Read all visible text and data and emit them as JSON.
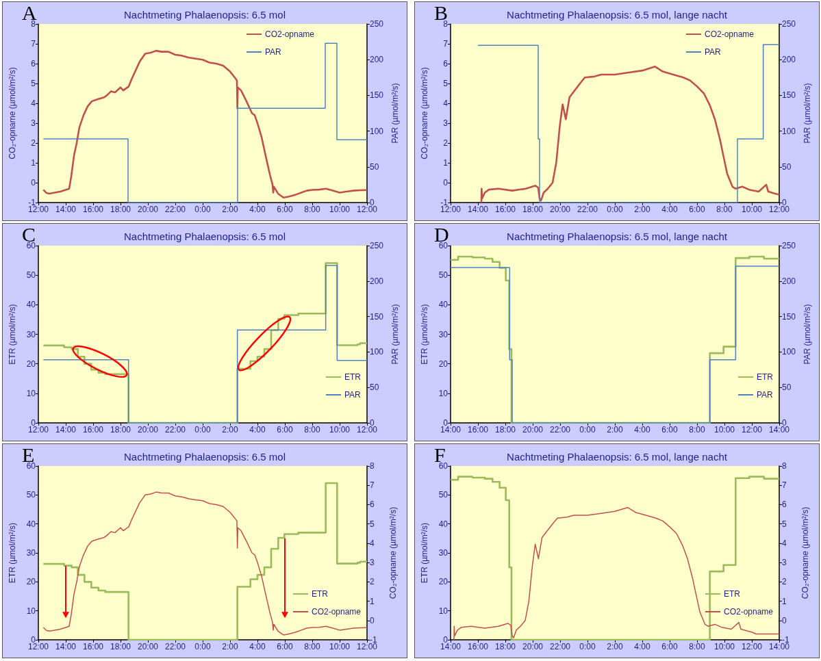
{
  "chart_data": [
    {
      "type": "line",
      "title": "Nachtmeting Phalaenopsis: 6.5 mol",
      "annotations": [
        "A"
      ],
      "ylabel": "CO₂-opname (µmol/m²/s)",
      "y2label": "PAR (µmol/m²/s)",
      "legend": "top right",
      "xlim": [
        "2000-01-01T12:00",
        "2000-01-02T12:00"
      ],
      "xticks": [
        {
          "value": "2000-01-01T12:00",
          "label": "12:00"
        },
        {
          "value": "2000-01-01T14:00",
          "label": "14:00"
        },
        {
          "value": "2000-01-01T16:00",
          "label": "16:00"
        },
        {
          "value": "2000-01-01T18:00",
          "label": "18:00"
        },
        {
          "value": "2000-01-01T20:00",
          "label": "20:00"
        },
        {
          "value": "2000-01-01T22:00",
          "label": "22:00"
        },
        {
          "value": "2000-01-02T00:00",
          "label": "0:00"
        },
        {
          "value": "2000-01-02T02:00",
          "label": "2:00"
        },
        {
          "value": "2000-01-02T04:00",
          "label": "4:00"
        },
        {
          "value": "2000-01-02T06:00",
          "label": "6:00"
        },
        {
          "value": "2000-01-02T08:00",
          "label": "8:00"
        },
        {
          "value": "2000-01-02T10:00",
          "label": "10:00"
        },
        {
          "value": "2000-01-02T12:00",
          "label": "12:00"
        }
      ],
      "ylim": [
        -1,
        8
      ],
      "yticks": [
        -1,
        0,
        1,
        2,
        3,
        4,
        5,
        6,
        7,
        8
      ],
      "y2lim": [
        0,
        250
      ],
      "y2ticks": [
        0,
        50,
        100,
        150,
        200,
        250
      ],
      "series": [
        {
          "name": "CO2-opname",
          "type": "line",
          "color": "#c0504d",
          "x": [
            "2000-01-01T12:22",
            "2000-01-01T12:36",
            "2000-01-01T12:48",
            "2000-01-01T13:12",
            "2000-01-01T13:36",
            "2000-01-01T14:00",
            "2000-01-01T14:15",
            "2000-01-01T14:24",
            "2000-01-01T14:36",
            "2000-01-01T14:48",
            "2000-01-01T15:00",
            "2000-01-01T15:18",
            "2000-01-01T15:36",
            "2000-01-01T15:54",
            "2000-01-01T16:18",
            "2000-01-01T16:48",
            "2000-01-01T17:00",
            "2000-01-01T17:18",
            "2000-01-01T17:36",
            "2000-01-01T18:00",
            "2000-01-01T18:12",
            "2000-01-01T18:36",
            "2000-01-01T18:48",
            "2000-01-01T19:06",
            "2000-01-01T19:24",
            "2000-01-01T19:48",
            "2000-01-01T20:12",
            "2000-01-01T20:36",
            "2000-01-01T21:00",
            "2000-01-01T21:30",
            "2000-01-01T22:00",
            "2000-01-01T22:30",
            "2000-01-01T23:00",
            "2000-01-01T23:30",
            "2000-01-02T00:00",
            "2000-01-02T00:30",
            "2000-01-02T01:00",
            "2000-01-02T01:30",
            "2000-01-02T02:00",
            "2000-01-02T02:24",
            "2000-01-02T02:30",
            "2000-01-02T02:32",
            "2000-01-02T02:34",
            "2000-01-02T02:48",
            "2000-01-02T03:12",
            "2000-01-02T03:36",
            "2000-01-02T03:48",
            "2000-01-02T04:00",
            "2000-01-02T04:18",
            "2000-01-02T04:36",
            "2000-01-02T04:54",
            "2000-01-02T05:06",
            "2000-01-02T05:09",
            "2000-01-02T05:12",
            "2000-01-02T05:30",
            "2000-01-02T05:54",
            "2000-01-02T06:18",
            "2000-01-02T06:48",
            "2000-01-02T07:12",
            "2000-01-02T07:36",
            "2000-01-02T08:00",
            "2000-01-02T08:30",
            "2000-01-02T09:00",
            "2000-01-02T09:30",
            "2000-01-02T10:00",
            "2000-01-02T10:30",
            "2000-01-02T11:00",
            "2000-01-02T11:30",
            "2000-01-02T12:00"
          ],
          "values": [
            -0.36,
            -0.52,
            -0.55,
            -0.5,
            -0.45,
            -0.36,
            -0.3,
            0.3,
            1.35,
            2.0,
            2.8,
            3.4,
            3.85,
            4.1,
            4.2,
            4.3,
            4.4,
            4.6,
            4.55,
            4.8,
            4.65,
            4.85,
            5.2,
            5.65,
            6.1,
            6.5,
            6.55,
            6.65,
            6.6,
            6.6,
            6.45,
            6.4,
            6.3,
            6.25,
            6.2,
            6.05,
            6.0,
            5.9,
            5.6,
            5.25,
            5.15,
            3.75,
            4.8,
            4.65,
            4.1,
            3.5,
            3.4,
            3.0,
            2.3,
            1.35,
            0.43,
            -0.1,
            -0.5,
            -0.2,
            -0.55,
            -0.75,
            -0.7,
            -0.6,
            -0.5,
            -0.4,
            -0.36,
            -0.35,
            -0.3,
            -0.4,
            -0.5,
            -0.45,
            -0.4,
            -0.38,
            -0.37
          ]
        },
        {
          "name": "PAR",
          "type": "step",
          "axis": "y2",
          "color": "#4f81bd",
          "x": [
            "2000-01-01T12:22",
            "2000-01-01T18:33",
            "2000-01-02T02:33",
            "2000-01-02T08:57",
            "2000-01-02T09:48",
            "2000-01-02T12:00"
          ],
          "values": [
            89,
            0,
            132,
            223,
            88,
            88
          ]
        }
      ]
    },
    {
      "type": "line",
      "title": "Nachtmeting Phalaenopsis: 6.5 mol, lange nacht",
      "annotations": [
        "B"
      ],
      "ylabel": "CO₂-opname (µmol/m²/s)",
      "y2label": "PAR (µmol/m²/s)",
      "legend": "top right",
      "xlim": [
        "2000-01-01T12:00",
        "2000-01-02T12:00"
      ],
      "xticks": [
        {
          "value": "2000-01-01T12:00",
          "label": "12:00"
        },
        {
          "value": "2000-01-01T14:00",
          "label": "14:00"
        },
        {
          "value": "2000-01-01T16:00",
          "label": "16:00"
        },
        {
          "value": "2000-01-01T18:00",
          "label": "18:00"
        },
        {
          "value": "2000-01-01T20:00",
          "label": "20:00"
        },
        {
          "value": "2000-01-01T22:00",
          "label": "22:00"
        },
        {
          "value": "2000-01-02T00:00",
          "label": "0:00"
        },
        {
          "value": "2000-01-02T02:00",
          "label": "2:00"
        },
        {
          "value": "2000-01-02T04:00",
          "label": "4:00"
        },
        {
          "value": "2000-01-02T06:00",
          "label": "6:00"
        },
        {
          "value": "2000-01-02T08:00",
          "label": "8:00"
        },
        {
          "value": "2000-01-02T10:00",
          "label": "10:00"
        },
        {
          "value": "2000-01-02T12:00",
          "label": "12:00"
        }
      ],
      "ylim": [
        -1,
        8
      ],
      "yticks": [
        -1,
        0,
        1,
        2,
        3,
        4,
        5,
        6,
        7,
        8
      ],
      "y2lim": [
        0,
        250
      ],
      "y2ticks": [
        0,
        50,
        100,
        150,
        200,
        250
      ],
      "series": [
        {
          "name": "CO2-opname",
          "type": "line",
          "color": "#c0504d",
          "x": [
            "2000-01-01T14:15",
            "2000-01-01T14:16",
            "2000-01-01T14:18",
            "2000-01-01T14:30",
            "2000-01-01T14:48",
            "2000-01-01T15:30",
            "2000-01-01T16:30",
            "2000-01-01T17:30",
            "2000-01-01T18:12",
            "2000-01-01T18:24",
            "2000-01-01T18:30",
            "2000-01-01T18:36",
            "2000-01-01T18:48",
            "2000-01-01T19:06",
            "2000-01-01T19:27",
            "2000-01-01T19:43",
            "2000-01-01T19:58",
            "2000-01-01T20:11",
            "2000-01-01T20:25",
            "2000-01-01T20:41",
            "2000-01-01T20:54",
            "2000-01-01T21:27",
            "2000-01-01T21:48",
            "2000-01-01T22:30",
            "2000-01-01T23:00",
            "2000-01-02T00:00",
            "2000-01-02T01:00",
            "2000-01-02T02:00",
            "2000-01-02T02:56",
            "2000-01-02T03:30",
            "2000-01-02T04:00",
            "2000-01-02T05:00",
            "2000-01-02T05:30",
            "2000-01-02T06:00",
            "2000-01-02T06:30",
            "2000-01-02T06:56",
            "2000-01-02T07:18",
            "2000-01-02T07:40",
            "2000-01-02T08:12",
            "2000-01-02T08:35",
            "2000-01-02T08:48",
            "2000-01-02T09:18",
            "2000-01-02T09:48",
            "2000-01-02T10:30",
            "2000-01-02T11:03",
            "2000-01-02T11:12",
            "2000-01-02T11:42",
            "2000-01-02T12:00"
          ],
          "values": [
            -1.0,
            -0.3,
            -0.8,
            -0.5,
            -0.35,
            -0.3,
            -0.4,
            -0.3,
            -0.15,
            -0.25,
            -0.8,
            -0.9,
            -0.5,
            -0.3,
            0.0,
            1.0,
            2.8,
            3.95,
            3.2,
            4.3,
            4.5,
            5.0,
            5.3,
            5.35,
            5.45,
            5.45,
            5.55,
            5.65,
            5.85,
            5.6,
            5.5,
            5.3,
            5.15,
            4.85,
            4.5,
            3.9,
            3.2,
            2.2,
            0.45,
            -0.2,
            -0.3,
            -0.2,
            -0.35,
            -0.45,
            -0.1,
            -0.45,
            -0.55,
            -0.6
          ]
        },
        {
          "name": "PAR",
          "type": "step",
          "axis": "y2",
          "color": "#4f81bd",
          "x": [
            "2000-01-01T14:00",
            "2000-01-01T18:24",
            "2000-01-01T18:30",
            "2000-01-02T08:57",
            "2000-01-02T10:50",
            "2000-01-02T12:00"
          ],
          "values": [
            220,
            89,
            0,
            89,
            221,
            221
          ]
        }
      ]
    },
    {
      "type": "line",
      "title": "Nachtmeting Phalaenopsis: 6.5 mol",
      "annotations": [
        "C"
      ],
      "ylabel": "ETR (µmol/m²/s)",
      "y2label": "PAR (µmol/m²/s)",
      "legend": "bottom right",
      "xlim": [
        "2000-01-01T12:00",
        "2000-01-02T12:00"
      ],
      "xticks": [
        {
          "value": "2000-01-01T12:00",
          "label": "12:00"
        },
        {
          "value": "2000-01-01T14:00",
          "label": "14:00"
        },
        {
          "value": "2000-01-01T16:00",
          "label": "16:00"
        },
        {
          "value": "2000-01-01T18:00",
          "label": "18:00"
        },
        {
          "value": "2000-01-01T20:00",
          "label": "20:00"
        },
        {
          "value": "2000-01-01T22:00",
          "label": "22:00"
        },
        {
          "value": "2000-01-02T00:00",
          "label": "0:00"
        },
        {
          "value": "2000-01-02T02:00",
          "label": "2:00"
        },
        {
          "value": "2000-01-02T04:00",
          "label": "4:00"
        },
        {
          "value": "2000-01-02T06:00",
          "label": "6:00"
        },
        {
          "value": "2000-01-02T08:00",
          "label": "8:00"
        },
        {
          "value": "2000-01-02T10:00",
          "label": "10:00"
        },
        {
          "value": "2000-01-02T12:00",
          "label": "12:00"
        }
      ],
      "ylim": [
        0,
        60
      ],
      "yticks": [
        0,
        10,
        20,
        30,
        40,
        50,
        60
      ],
      "y2lim": [
        0,
        250
      ],
      "y2ticks": [
        0,
        50,
        100,
        150,
        200,
        250
      ],
      "series": [
        {
          "name": "ETR",
          "type": "step",
          "color": "#9bbb59",
          "x": [
            "2000-01-01T12:22",
            "2000-01-01T13:53",
            "2000-01-01T14:26",
            "2000-01-01T14:53",
            "2000-01-01T15:22",
            "2000-01-01T15:52",
            "2000-01-01T16:23",
            "2000-01-01T16:53",
            "2000-01-01T18:35",
            "2000-01-02T02:32",
            "2000-01-02T03:29",
            "2000-01-02T04:00",
            "2000-01-02T04:30",
            "2000-01-02T05:00",
            "2000-01-02T05:31",
            "2000-01-02T05:58",
            "2000-01-02T06:59",
            "2000-01-02T08:59",
            "2000-01-02T09:49",
            "2000-01-02T11:18",
            "2000-01-02T11:30",
            "2000-01-02T12:00"
          ],
          "values": [
            26.2,
            25.6,
            25.0,
            22.4,
            20.0,
            18.0,
            17.0,
            16.5,
            0,
            18.3,
            20.9,
            22.4,
            25.0,
            31.4,
            35.2,
            36.5,
            37.0,
            54.1,
            26.3,
            26.6,
            27.0,
            27.0
          ]
        },
        {
          "name": "PAR",
          "type": "step",
          "axis": "y2",
          "color": "#4f81bd",
          "x": [
            "2000-01-01T12:22",
            "2000-01-01T18:35",
            "2000-01-02T02:32",
            "2000-01-02T08:59",
            "2000-01-02T09:49",
            "2000-01-02T12:00"
          ],
          "values": [
            89,
            0,
            131,
            222,
            88,
            88
          ]
        }
      ]
    },
    {
      "type": "line",
      "title": "Nachtmeting Phalaenopsis: 6.5 mol, lange nacht",
      "annotations": [
        "D"
      ],
      "ylabel": "ETR (µmol/m²/s)",
      "y2label": "PAR (µmol/m²/s)",
      "legend": "bottom right",
      "xlim": [
        "2000-01-01T14:00",
        "2000-01-02T14:00"
      ],
      "xticks": [
        {
          "value": "2000-01-01T14:00",
          "label": "14:00"
        },
        {
          "value": "2000-01-01T16:00",
          "label": "16:00"
        },
        {
          "value": "2000-01-01T18:00",
          "label": "18:00"
        },
        {
          "value": "2000-01-01T20:00",
          "label": "20:00"
        },
        {
          "value": "2000-01-01T22:00",
          "label": "22:00"
        },
        {
          "value": "2000-01-02T00:00",
          "label": "0:00"
        },
        {
          "value": "2000-01-02T02:00",
          "label": "2:00"
        },
        {
          "value": "2000-01-02T04:00",
          "label": "4:00"
        },
        {
          "value": "2000-01-02T06:00",
          "label": "6:00"
        },
        {
          "value": "2000-01-02T08:00",
          "label": "8:00"
        },
        {
          "value": "2000-01-02T10:00",
          "label": "10:00"
        },
        {
          "value": "2000-01-02T12:00",
          "label": "12:00"
        },
        {
          "value": "2000-01-02T14:00",
          "label": "14:00"
        }
      ],
      "ylim": [
        0,
        60
      ],
      "yticks": [
        0,
        10,
        20,
        30,
        40,
        50,
        60
      ],
      "y2lim": [
        0,
        250
      ],
      "y2ticks": [
        0,
        50,
        100,
        150,
        200,
        250
      ],
      "series": [
        {
          "name": "ETR",
          "type": "step",
          "color": "#9bbb59",
          "x": [
            "2000-01-01T14:00",
            "2000-01-01T14:33",
            "2000-01-01T15:36",
            "2000-01-01T16:30",
            "2000-01-01T17:04",
            "2000-01-01T17:35",
            "2000-01-01T18:02",
            "2000-01-01T18:17",
            "2000-01-01T18:27",
            "2000-01-02T08:56",
            "2000-01-02T09:56",
            "2000-01-02T10:49",
            "2000-01-02T11:49",
            "2000-01-02T12:53",
            "2000-01-02T14:00"
          ],
          "values": [
            55.2,
            56.3,
            56.0,
            55.6,
            54.5,
            52.5,
            48.2,
            25.0,
            0,
            23.6,
            25.8,
            55.8,
            56.3,
            55.6,
            55.6
          ]
        },
        {
          "name": "PAR",
          "type": "step",
          "axis": "y2",
          "color": "#4f81bd",
          "x": [
            "2000-01-01T14:00",
            "2000-01-01T18:19",
            "2000-01-01T18:30",
            "2000-01-02T08:56",
            "2000-01-02T10:49",
            "2000-01-02T14:00"
          ],
          "values": [
            219,
            89,
            0,
            89,
            221,
            221
          ]
        }
      ]
    },
    {
      "type": "line",
      "title": "Nachtmeting Phalaenopsis: 6.5 mol",
      "annotations": [
        "E"
      ],
      "ylabel": "ETR (µmol/m²/s)",
      "y2label": "CO₂-opname (µmol/m²/s)",
      "legend": "bottom right",
      "xlim": [
        "2000-01-01T12:00",
        "2000-01-02T12:00"
      ],
      "xticks": [
        {
          "value": "2000-01-01T12:00",
          "label": "12:00"
        },
        {
          "value": "2000-01-01T14:00",
          "label": "14:00"
        },
        {
          "value": "2000-01-01T16:00",
          "label": "16:00"
        },
        {
          "value": "2000-01-01T18:00",
          "label": "18:00"
        },
        {
          "value": "2000-01-01T20:00",
          "label": "20:00"
        },
        {
          "value": "2000-01-01T22:00",
          "label": "22:00"
        },
        {
          "value": "2000-01-02T00:00",
          "label": "0:00"
        },
        {
          "value": "2000-01-02T02:00",
          "label": "2:00"
        },
        {
          "value": "2000-01-02T04:00",
          "label": "4:00"
        },
        {
          "value": "2000-01-02T06:00",
          "label": "6:00"
        },
        {
          "value": "2000-01-02T08:00",
          "label": "8:00"
        },
        {
          "value": "2000-01-02T10:00",
          "label": "10:00"
        },
        {
          "value": "2000-01-02T12:00",
          "label": "12:00"
        }
      ],
      "ylim": [
        0,
        60
      ],
      "yticks": [
        0,
        10,
        20,
        30,
        40,
        50,
        60
      ],
      "y2lim": [
        -1,
        8
      ],
      "y2ticks": [
        -1,
        0,
        1,
        2,
        3,
        4,
        5,
        6,
        7,
        8
      ],
      "series": [
        {
          "name": "ETR",
          "type": "step",
          "color": "#9bbb59",
          "x": [
            "2000-01-01T12:22",
            "2000-01-01T13:53",
            "2000-01-01T14:26",
            "2000-01-01T14:53",
            "2000-01-01T15:22",
            "2000-01-01T15:52",
            "2000-01-01T16:23",
            "2000-01-01T16:53",
            "2000-01-01T18:35",
            "2000-01-02T02:32",
            "2000-01-02T03:29",
            "2000-01-02T04:00",
            "2000-01-02T04:30",
            "2000-01-02T05:00",
            "2000-01-02T05:31",
            "2000-01-02T05:58",
            "2000-01-02T06:59",
            "2000-01-02T08:59",
            "2000-01-02T09:49",
            "2000-01-02T11:18",
            "2000-01-02T11:30",
            "2000-01-02T12:00"
          ],
          "values": [
            26.2,
            25.6,
            25.0,
            22.4,
            20.0,
            18.0,
            17.0,
            16.5,
            0,
            18.3,
            20.9,
            22.4,
            25.0,
            31.4,
            35.2,
            36.5,
            37.0,
            54.1,
            26.3,
            26.6,
            27.0,
            27.0
          ]
        },
        {
          "name": "CO2-opname",
          "type": "line",
          "axis": "y2",
          "color": "#c0504d",
          "x": [
            "2000-01-01T12:22",
            "2000-01-01T12:36",
            "2000-01-01T12:48",
            "2000-01-01T13:12",
            "2000-01-01T13:36",
            "2000-01-01T14:00",
            "2000-01-01T14:15",
            "2000-01-01T14:24",
            "2000-01-01T14:36",
            "2000-01-01T14:48",
            "2000-01-01T15:00",
            "2000-01-01T15:18",
            "2000-01-01T15:36",
            "2000-01-01T15:54",
            "2000-01-01T16:18",
            "2000-01-01T16:48",
            "2000-01-01T17:00",
            "2000-01-01T17:18",
            "2000-01-01T17:36",
            "2000-01-01T18:00",
            "2000-01-01T18:12",
            "2000-01-01T18:36",
            "2000-01-01T18:48",
            "2000-01-01T19:06",
            "2000-01-01T19:24",
            "2000-01-01T19:48",
            "2000-01-01T20:12",
            "2000-01-01T20:36",
            "2000-01-01T21:00",
            "2000-01-01T21:30",
            "2000-01-01T22:00",
            "2000-01-01T22:30",
            "2000-01-01T23:00",
            "2000-01-01T23:30",
            "2000-01-02T00:00",
            "2000-01-02T00:30",
            "2000-01-02T01:00",
            "2000-01-02T01:30",
            "2000-01-02T02:00",
            "2000-01-02T02:24",
            "2000-01-02T02:30",
            "2000-01-02T02:32",
            "2000-01-02T02:34",
            "2000-01-02T02:48",
            "2000-01-02T03:12",
            "2000-01-02T03:36",
            "2000-01-02T03:48",
            "2000-01-02T04:00",
            "2000-01-02T04:18",
            "2000-01-02T04:36",
            "2000-01-02T04:54",
            "2000-01-02T05:06",
            "2000-01-02T05:09",
            "2000-01-02T05:12",
            "2000-01-02T05:30",
            "2000-01-02T05:54",
            "2000-01-02T06:18",
            "2000-01-02T06:48",
            "2000-01-02T07:12",
            "2000-01-02T07:36",
            "2000-01-02T08:00",
            "2000-01-02T08:30",
            "2000-01-02T09:00",
            "2000-01-02T09:30",
            "2000-01-02T10:00",
            "2000-01-02T10:30",
            "2000-01-02T11:00",
            "2000-01-02T11:30",
            "2000-01-02T12:00"
          ],
          "values": [
            -0.36,
            -0.52,
            -0.55,
            -0.5,
            -0.45,
            -0.36,
            -0.3,
            0.3,
            1.35,
            2.0,
            2.8,
            3.4,
            3.85,
            4.1,
            4.2,
            4.3,
            4.4,
            4.6,
            4.55,
            4.8,
            4.65,
            4.85,
            5.2,
            5.65,
            6.1,
            6.5,
            6.55,
            6.65,
            6.6,
            6.6,
            6.45,
            6.4,
            6.3,
            6.25,
            6.2,
            6.05,
            6.0,
            5.9,
            5.6,
            5.25,
            5.15,
            3.75,
            4.8,
            4.65,
            4.1,
            3.5,
            3.4,
            3.0,
            2.3,
            1.35,
            0.43,
            -0.1,
            -0.5,
            -0.2,
            -0.55,
            -0.75,
            -0.7,
            -0.6,
            -0.5,
            -0.4,
            -0.36,
            -0.35,
            -0.3,
            -0.4,
            -0.5,
            -0.45,
            -0.4,
            -0.38,
            -0.37
          ]
        }
      ]
    },
    {
      "type": "line",
      "title": "Nachtmeting Phalaenopsis: 6.5 mol, lange nacht",
      "annotations": [
        "F"
      ],
      "ylabel": "ETR (µmol/m²/s)",
      "y2label": "CO₂-opname (µmol/m²/s)",
      "legend": "bottom right",
      "xlim": [
        "2000-01-01T14:00",
        "2000-01-02T14:00"
      ],
      "xticks": [
        {
          "value": "2000-01-01T14:00",
          "label": "14:00"
        },
        {
          "value": "2000-01-01T16:00",
          "label": "16:00"
        },
        {
          "value": "2000-01-01T18:00",
          "label": "18:00"
        },
        {
          "value": "2000-01-01T20:00",
          "label": "20:00"
        },
        {
          "value": "2000-01-01T22:00",
          "label": "22:00"
        },
        {
          "value": "2000-01-02T00:00",
          "label": "0:00"
        },
        {
          "value": "2000-01-02T02:00",
          "label": "2:00"
        },
        {
          "value": "2000-01-02T04:00",
          "label": "4:00"
        },
        {
          "value": "2000-01-02T06:00",
          "label": "6:00"
        },
        {
          "value": "2000-01-02T08:00",
          "label": "8:00"
        },
        {
          "value": "2000-01-02T10:00",
          "label": "10:00"
        },
        {
          "value": "2000-01-02T12:00",
          "label": "12:00"
        },
        {
          "value": "2000-01-02T14:00",
          "label": "14:00"
        }
      ],
      "ylim": [
        0,
        60
      ],
      "yticks": [
        0,
        10,
        20,
        30,
        40,
        50,
        60
      ],
      "y2lim": [
        -1,
        8
      ],
      "y2ticks": [
        -1,
        0,
        1,
        2,
        3,
        4,
        5,
        6,
        7,
        8
      ],
      "series": [
        {
          "name": "ETR",
          "type": "step",
          "color": "#9bbb59",
          "x": [
            "2000-01-01T14:00",
            "2000-01-01T14:33",
            "2000-01-01T15:36",
            "2000-01-01T16:30",
            "2000-01-01T17:04",
            "2000-01-01T17:35",
            "2000-01-01T18:02",
            "2000-01-01T18:17",
            "2000-01-01T18:27",
            "2000-01-02T08:56",
            "2000-01-02T09:56",
            "2000-01-02T10:49",
            "2000-01-02T11:49",
            "2000-01-02T12:53",
            "2000-01-02T14:00"
          ],
          "values": [
            55.2,
            56.3,
            56.0,
            55.6,
            54.5,
            52.5,
            48.2,
            25.0,
            0,
            23.6,
            25.8,
            55.8,
            56.3,
            55.6,
            55.6
          ]
        },
        {
          "name": "CO2-opname",
          "type": "line",
          "axis": "y2",
          "color": "#c0504d",
          "x": [
            "2000-01-01T14:15",
            "2000-01-01T14:16",
            "2000-01-01T14:18",
            "2000-01-01T14:30",
            "2000-01-01T14:48",
            "2000-01-01T15:30",
            "2000-01-01T16:30",
            "2000-01-01T17:30",
            "2000-01-01T18:12",
            "2000-01-01T18:24",
            "2000-01-01T18:30",
            "2000-01-01T18:36",
            "2000-01-01T18:48",
            "2000-01-01T19:06",
            "2000-01-01T19:27",
            "2000-01-01T19:43",
            "2000-01-01T19:58",
            "2000-01-01T20:11",
            "2000-01-01T20:25",
            "2000-01-01T20:41",
            "2000-01-01T20:54",
            "2000-01-01T21:27",
            "2000-01-01T21:48",
            "2000-01-01T22:30",
            "2000-01-01T23:00",
            "2000-01-02T00:00",
            "2000-01-02T01:00",
            "2000-01-02T02:00",
            "2000-01-02T02:56",
            "2000-01-02T03:30",
            "2000-01-02T04:00",
            "2000-01-02T05:00",
            "2000-01-02T05:30",
            "2000-01-02T06:00",
            "2000-01-02T06:30",
            "2000-01-02T06:56",
            "2000-01-02T07:18",
            "2000-01-02T07:40",
            "2000-01-02T08:12",
            "2000-01-02T08:35",
            "2000-01-02T08:48",
            "2000-01-02T09:18",
            "2000-01-02T09:48",
            "2000-01-02T10:30",
            "2000-01-02T11:03",
            "2000-01-02T11:12",
            "2000-01-02T11:42",
            "2000-01-02T12:00",
            "2000-01-02T12:18",
            "2000-01-02T14:00"
          ],
          "values": [
            -1.0,
            -0.3,
            -0.8,
            -0.5,
            -0.35,
            -0.3,
            -0.4,
            -0.3,
            -0.15,
            -0.25,
            -0.8,
            -0.9,
            -0.5,
            -0.3,
            0.0,
            1.0,
            2.8,
            3.95,
            3.2,
            4.3,
            4.5,
            5.0,
            5.3,
            5.35,
            5.45,
            5.45,
            5.55,
            5.65,
            5.85,
            5.6,
            5.5,
            5.3,
            5.15,
            4.85,
            4.5,
            3.9,
            3.2,
            2.2,
            0.45,
            -0.2,
            -0.3,
            -0.2,
            -0.35,
            -0.45,
            -0.1,
            -0.45,
            -0.55,
            -0.6,
            -0.7,
            -0.7
          ]
        }
      ]
    }
  ]
}
